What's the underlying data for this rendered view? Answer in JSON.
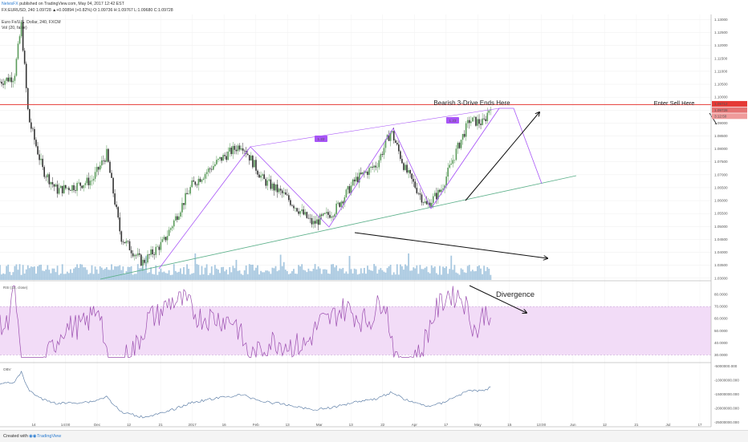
{
  "header": {
    "publisher": "NelvisFX",
    "published_text": "published on TradingView.com, May 04, 2017 12:42 EST",
    "quote_line": "FX:EURUSD, 240  1.09728  ▲+0.00894 (+0.82%)  O:1.09736  H:1.09767  L:1.09680  C:1.09728",
    "instrument": "Euro Fx/U.S. Dollar, 240, FXCM",
    "volume_label": "Vol (20, false)"
  },
  "footer": {
    "created_with": "Created with",
    "brand": "TradingView"
  },
  "colors": {
    "bull_candle": "#5a9a5a",
    "bear_candle": "#333333",
    "resistance": "#e53935",
    "trendline": "#5cb08a",
    "pattern": "#a855f7",
    "volume": "#8bb6d6",
    "rsi": "#9c4fb0",
    "rsi_band": "#f2dcf7",
    "obv": "#4a6f9c"
  },
  "chart_data": {
    "type": "line",
    "title": "Euro Fx/U.S. Dollar, 240, FXCM",
    "price_axis": {
      "ticks": [
        "1.13000",
        "1.12500",
        "1.12000",
        "1.11500",
        "1.11000",
        "1.10500",
        "1.10000",
        "1.09500",
        "1.09000",
        "1.08500",
        "1.08000",
        "1.07500",
        "1.07000",
        "1.06500",
        "1.06000",
        "1.05500",
        "1.05000",
        "1.04500",
        "1.04000",
        "1.03500",
        "1.03000"
      ],
      "ylim": [
        1.029,
        1.132
      ],
      "labels": {
        "resistance": "1.09712",
        "last": "1.09728",
        "countdown": "3:12:50"
      }
    },
    "time_axis": {
      "ticks": [
        "14",
        "14:00",
        "Dec",
        "12",
        "21",
        "2017",
        "16",
        "Feb",
        "13",
        "Mar",
        "13",
        "22",
        "Apr",
        "17",
        "May",
        "15",
        "13:00",
        "Jun",
        "12",
        "21",
        "Jul",
        "17"
      ]
    },
    "price_path": [
      {
        "x": 0.0,
        "y": 1.106
      },
      {
        "x": 0.02,
        "y": 1.108
      },
      {
        "x": 0.03,
        "y": 1.128
      },
      {
        "x": 0.04,
        "y": 1.092
      },
      {
        "x": 0.06,
        "y": 1.072
      },
      {
        "x": 0.08,
        "y": 1.064
      },
      {
        "x": 0.11,
        "y": 1.066
      },
      {
        "x": 0.13,
        "y": 1.068
      },
      {
        "x": 0.15,
        "y": 1.078
      },
      {
        "x": 0.17,
        "y": 1.046
      },
      {
        "x": 0.2,
        "y": 1.036
      },
      {
        "x": 0.23,
        "y": 1.044
      },
      {
        "x": 0.27,
        "y": 1.066
      },
      {
        "x": 0.31,
        "y": 1.076
      },
      {
        "x": 0.34,
        "y": 1.082
      },
      {
        "x": 0.37,
        "y": 1.068
      },
      {
        "x": 0.4,
        "y": 1.062
      },
      {
        "x": 0.44,
        "y": 1.051
      },
      {
        "x": 0.47,
        "y": 1.056
      },
      {
        "x": 0.5,
        "y": 1.068
      },
      {
        "x": 0.53,
        "y": 1.074
      },
      {
        "x": 0.55,
        "y": 1.087
      },
      {
        "x": 0.57,
        "y": 1.072
      },
      {
        "x": 0.6,
        "y": 1.058
      },
      {
        "x": 0.62,
        "y": 1.064
      },
      {
        "x": 0.64,
        "y": 1.078
      },
      {
        "x": 0.66,
        "y": 1.091
      },
      {
        "x": 0.68,
        "y": 1.09
      },
      {
        "x": 0.69,
        "y": 1.097
      }
    ],
    "series": [
      {
        "name": "Vol (20, false)",
        "type": "bar"
      },
      {
        "name": "RSI (14, close)",
        "type": "line",
        "ylim": [
          25,
          90
        ],
        "ticks": [
          "80.0000",
          "70.0000",
          "60.0000",
          "50.0000",
          "40.0000",
          "30.0000"
        ]
      },
      {
        "name": "OBV",
        "type": "line",
        "ticks": [
          "-5000000.000",
          "-10000000.000",
          "-15000000.000",
          "-20000000.000",
          "-25000000.000"
        ]
      }
    ],
    "annotations": {
      "pattern_label": "Bearish 3-Drive Ends Here",
      "sell_label": "Enter Sell Here",
      "divergence_label": "Divergence",
      "drive_ratio_1": "1.22",
      "drive_ratio_2": "1.23"
    },
    "rsi_indicator_label": "RSI (14, close)",
    "obv_indicator_label": "OBV"
  }
}
